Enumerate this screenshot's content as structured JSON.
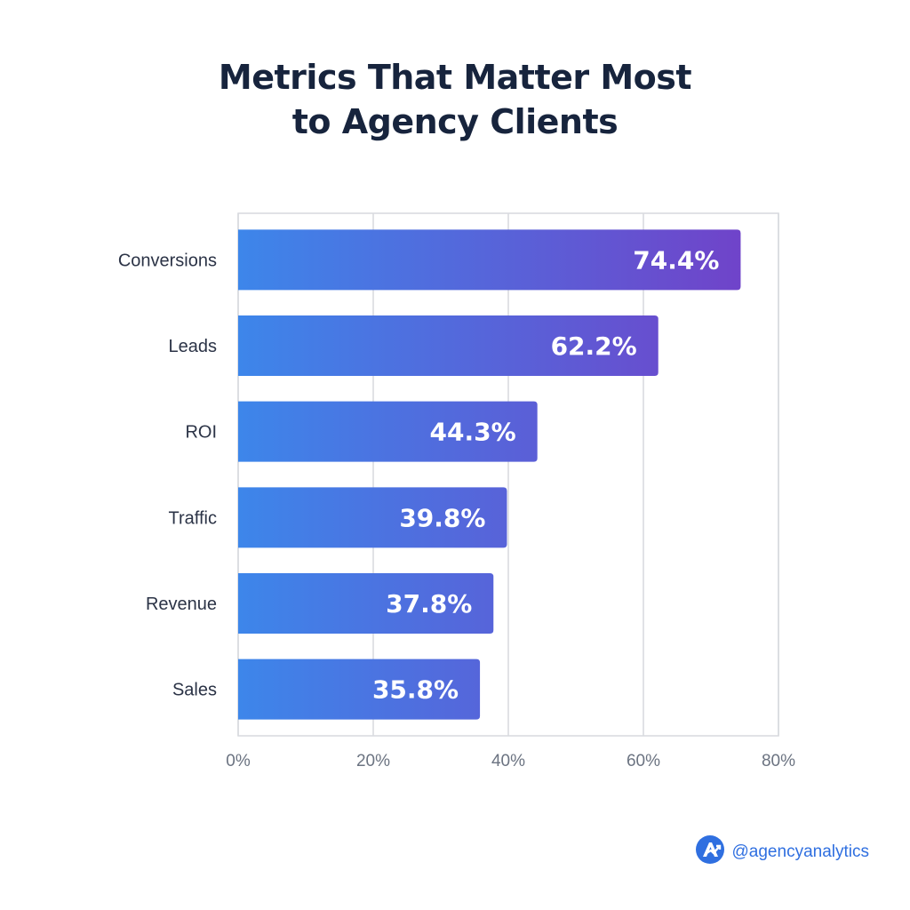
{
  "title_lines": [
    "Metrics That Matter Most",
    "to Agency Clients"
  ],
  "brand": {
    "handle": "@agencyanalytics",
    "logo_icon": "agencyanalytics-logo-icon"
  },
  "colors": {
    "bar_start": "#3d86ea",
    "bar_end": "#7043c9",
    "grid": "#d7d9de",
    "title": "#17243d",
    "brand": "#2f6fe0"
  },
  "chart_data": {
    "type": "bar",
    "orientation": "horizontal",
    "categories": [
      "Conversions",
      "Leads",
      "ROI",
      "Traffic",
      "Revenue",
      "Sales"
    ],
    "values": [
      74.4,
      62.2,
      44.3,
      39.8,
      37.8,
      35.8
    ],
    "value_labels": [
      "74.4%",
      "62.2%",
      "44.3%",
      "39.8%",
      "37.8%",
      "35.8%"
    ],
    "title": "Metrics That Matter Most to Agency Clients",
    "xlim": [
      0,
      80
    ],
    "xticks": [
      0,
      20,
      40,
      60,
      80
    ],
    "xtick_labels": [
      "0%",
      "20%",
      "40%",
      "60%",
      "80%"
    ],
    "grid": true
  }
}
